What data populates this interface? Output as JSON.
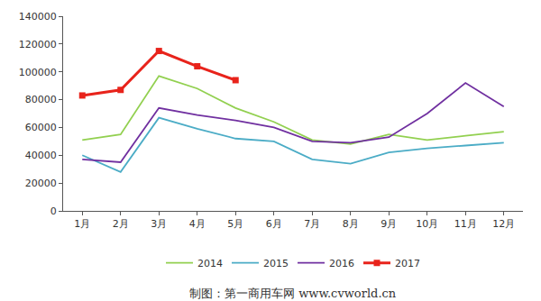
{
  "chart_data": {
    "type": "line",
    "source": "制图：第一商用车网 www.cvworld.cn",
    "categories": [
      "1月",
      "2月",
      "3月",
      "4月",
      "5月",
      "6月",
      "7月",
      "8月",
      "9月",
      "10月",
      "11月",
      "12月"
    ],
    "series": [
      {
        "name": "2014",
        "color": "#92d050",
        "values": [
          51000,
          55000,
          97000,
          88000,
          74000,
          64000,
          51000,
          48000,
          55000,
          51000,
          54000,
          57000
        ]
      },
      {
        "name": "2015",
        "color": "#4bacc6",
        "values": [
          40000,
          28000,
          67000,
          59000,
          52000,
          50000,
          37000,
          34000,
          42000,
          45000,
          47000,
          49000
        ]
      },
      {
        "name": "2016",
        "color": "#7030a0",
        "values": [
          37000,
          35000,
          74000,
          69000,
          65000,
          60000,
          50000,
          49000,
          53000,
          70000,
          92000,
          75000
        ]
      },
      {
        "name": "2017",
        "color": "#e8231b",
        "marker": "square",
        "values": [
          83000,
          87000,
          115000,
          104000,
          94000,
          null,
          null,
          null,
          null,
          null,
          null,
          null
        ]
      }
    ],
    "ylim": [
      0,
      140000
    ],
    "yticks": [
      0,
      20000,
      40000,
      60000,
      80000,
      100000,
      120000,
      140000
    ],
    "grid": false,
    "legend": "bottom"
  }
}
